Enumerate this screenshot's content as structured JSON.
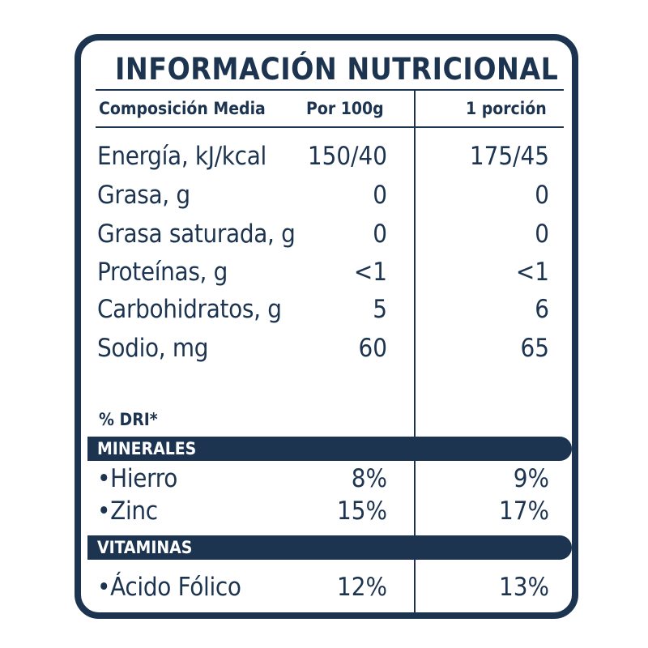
{
  "title": "INFORMACIÓN NUTRICIONAL",
  "header": {
    "name": "Composición Media",
    "col1": "Por 100g",
    "col2": "1 porción"
  },
  "rows": [
    {
      "name": "Energía, kJ/kcal",
      "per100": "150/40",
      "portion": "175/45"
    },
    {
      "name": "Grasa, g",
      "per100": "0",
      "portion": "0"
    },
    {
      "name": "Grasa saturada, g",
      "per100": "0",
      "portion": "0"
    },
    {
      "name": "Proteínas, g",
      "per100": "<1",
      "portion": "<1"
    },
    {
      "name": "Carbohidratos, g",
      "per100": "5",
      "portion": "6"
    },
    {
      "name": "Sodio, mg",
      "per100": "60",
      "portion": "65"
    }
  ],
  "dri_label": "% DRI*",
  "minerals": {
    "label": "MINERALES",
    "items": [
      {
        "name": "•Hierro",
        "per100": "8%",
        "portion": "9%"
      },
      {
        "name": "•Zinc",
        "per100": "15%",
        "portion": "17%"
      }
    ]
  },
  "vitamins": {
    "label": "VITAMINAS",
    "items": [
      {
        "name": "•Ácido Fólico",
        "per100": "12%",
        "portion": "13%"
      }
    ]
  },
  "colors": {
    "ink": "#1c3450",
    "background": "#ffffff"
  }
}
